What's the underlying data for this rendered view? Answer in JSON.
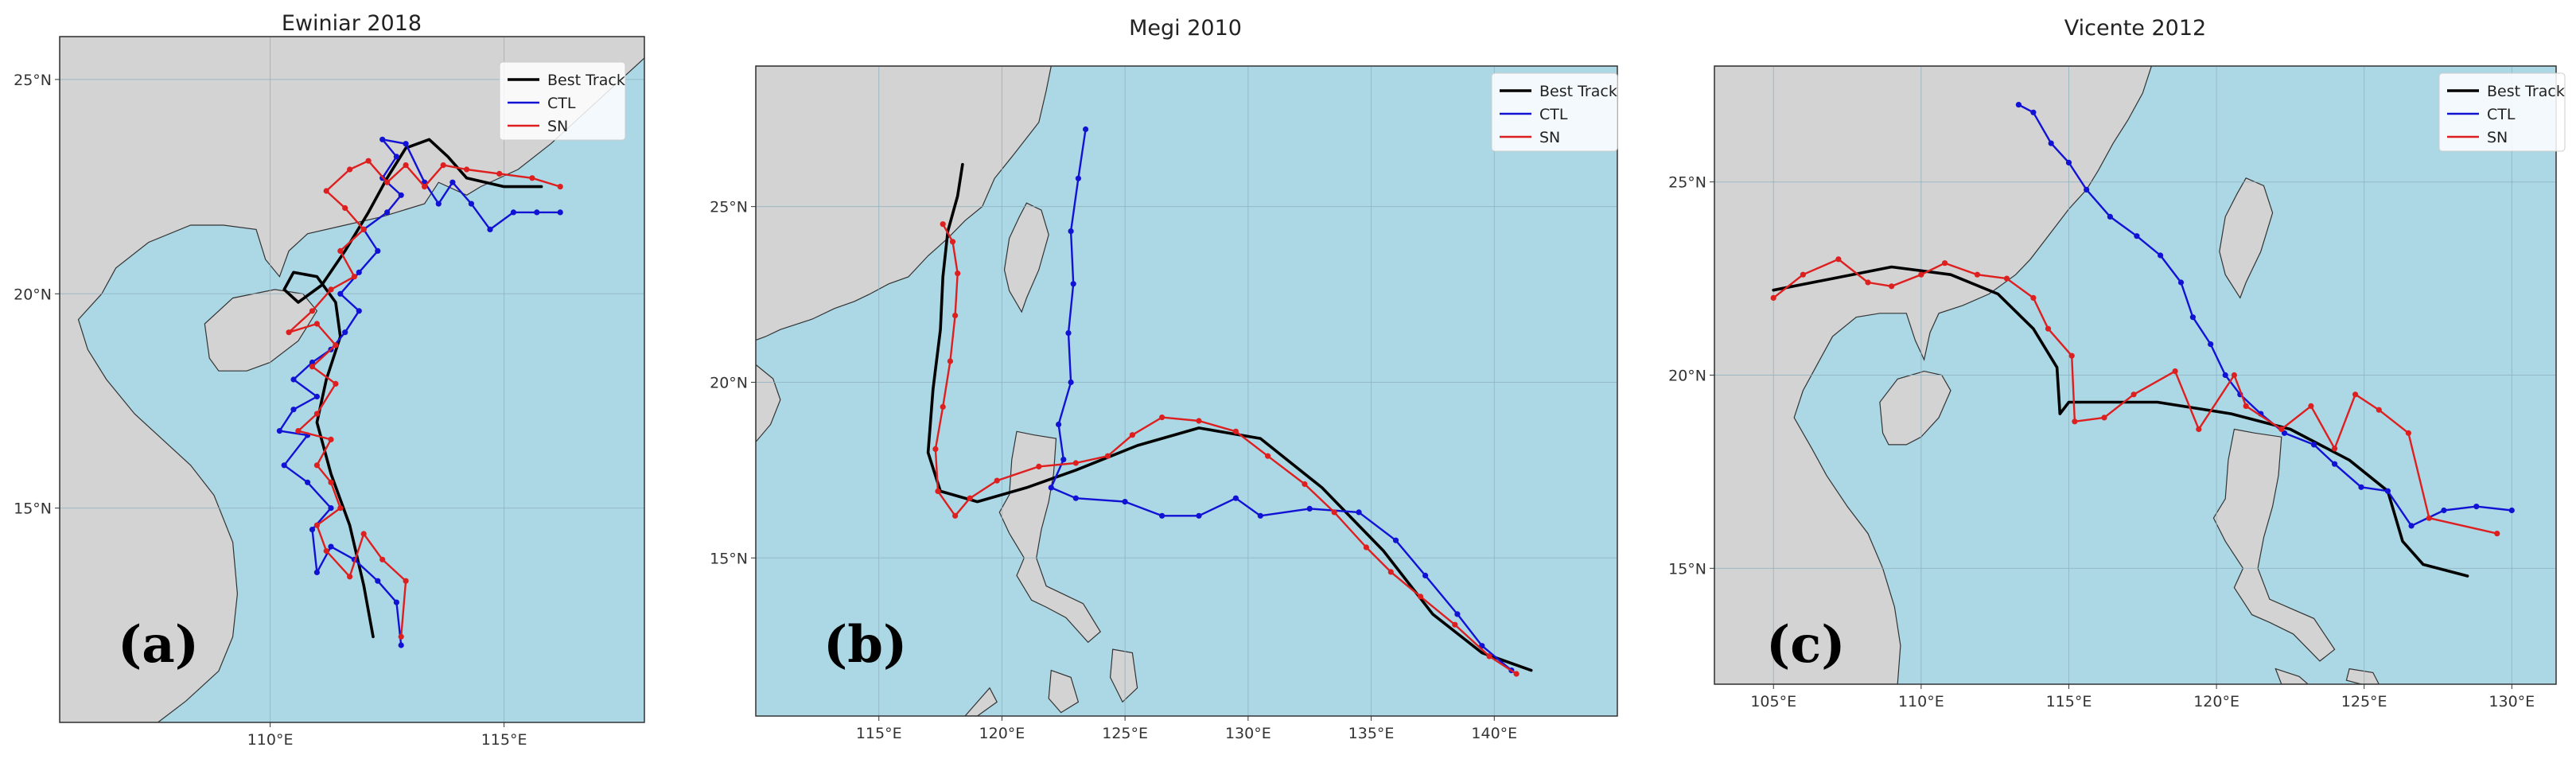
{
  "legend_labels": [
    "Best Track",
    "CTL",
    "SN"
  ],
  "colors": {
    "sea": "#acd8e6",
    "land": "#d3d3d3",
    "grid": "#8fb2c0",
    "best_track": "#000000",
    "ctl": "#1212d4",
    "sn": "#de1f1f"
  },
  "panels": [
    {
      "id": "a",
      "title": "Ewiniar 2018",
      "label": "(a)",
      "lon_range": [
        105.5,
        118.0
      ],
      "lat_range": [
        10.0,
        26.0
      ],
      "lon_ticks": [
        110,
        115
      ],
      "lon_tick_labels": [
        "110°E",
        "115°E"
      ],
      "lat_ticks": [
        15,
        20,
        25
      ],
      "lat_tick_labels": [
        "15°N",
        "20°N",
        "25°N"
      ],
      "tracks": {
        "best_track": [
          [
            112.2,
            12.0
          ],
          [
            112.0,
            13.2
          ],
          [
            111.7,
            14.6
          ],
          [
            111.3,
            15.8
          ],
          [
            111.0,
            17.0
          ],
          [
            111.2,
            18.0
          ],
          [
            111.5,
            19.0
          ],
          [
            111.4,
            19.8
          ],
          [
            111.0,
            20.4
          ],
          [
            110.5,
            20.5
          ],
          [
            110.3,
            20.1
          ],
          [
            110.6,
            19.8
          ],
          [
            111.1,
            20.2
          ],
          [
            111.6,
            21.0
          ],
          [
            112.1,
            21.9
          ],
          [
            112.5,
            22.7
          ],
          [
            112.9,
            23.4
          ],
          [
            113.4,
            23.6
          ],
          [
            113.8,
            23.2
          ],
          [
            114.2,
            22.7
          ],
          [
            115.0,
            22.5
          ],
          [
            115.8,
            22.5
          ]
        ],
        "ctl": [
          [
            112.8,
            11.8
          ],
          [
            112.7,
            12.8
          ],
          [
            112.3,
            13.3
          ],
          [
            111.8,
            13.8
          ],
          [
            111.3,
            14.1
          ],
          [
            111.0,
            13.5
          ],
          [
            110.9,
            14.5
          ],
          [
            111.3,
            15.0
          ],
          [
            110.8,
            15.6
          ],
          [
            110.3,
            16.0
          ],
          [
            110.8,
            16.7
          ],
          [
            110.2,
            16.8
          ],
          [
            110.5,
            17.3
          ],
          [
            111.0,
            17.6
          ],
          [
            110.5,
            18.0
          ],
          [
            110.9,
            18.4
          ],
          [
            111.3,
            18.7
          ],
          [
            111.6,
            19.1
          ],
          [
            111.9,
            19.6
          ],
          [
            111.5,
            20.0
          ],
          [
            111.9,
            20.5
          ],
          [
            112.3,
            21.0
          ],
          [
            112.0,
            21.5
          ],
          [
            112.5,
            21.9
          ],
          [
            112.8,
            22.3
          ],
          [
            112.4,
            22.7
          ],
          [
            112.7,
            23.2
          ],
          [
            112.4,
            23.6
          ],
          [
            112.9,
            23.5
          ],
          [
            113.3,
            22.6
          ],
          [
            113.6,
            22.1
          ],
          [
            113.9,
            22.6
          ],
          [
            114.3,
            22.1
          ],
          [
            114.7,
            21.5
          ],
          [
            115.2,
            21.9
          ],
          [
            115.7,
            21.9
          ],
          [
            116.2,
            21.9
          ]
        ],
        "sn": [
          [
            112.8,
            12.0
          ],
          [
            112.9,
            13.3
          ],
          [
            112.4,
            13.8
          ],
          [
            112.0,
            14.4
          ],
          [
            111.7,
            13.4
          ],
          [
            111.2,
            14.0
          ],
          [
            111.0,
            14.6
          ],
          [
            111.5,
            15.0
          ],
          [
            111.3,
            15.6
          ],
          [
            111.0,
            16.0
          ],
          [
            111.3,
            16.6
          ],
          [
            110.6,
            16.8
          ],
          [
            111.0,
            17.2
          ],
          [
            111.4,
            17.9
          ],
          [
            110.9,
            18.3
          ],
          [
            111.4,
            18.8
          ],
          [
            111.0,
            19.3
          ],
          [
            110.4,
            19.1
          ],
          [
            110.9,
            19.6
          ],
          [
            111.3,
            20.1
          ],
          [
            111.8,
            20.4
          ],
          [
            111.5,
            21.0
          ],
          [
            112.0,
            21.5
          ],
          [
            111.6,
            22.0
          ],
          [
            111.2,
            22.4
          ],
          [
            111.7,
            22.9
          ],
          [
            112.1,
            23.1
          ],
          [
            112.5,
            22.6
          ],
          [
            112.9,
            23.0
          ],
          [
            113.3,
            22.5
          ],
          [
            113.7,
            23.0
          ],
          [
            114.2,
            22.9
          ],
          [
            114.9,
            22.8
          ],
          [
            115.6,
            22.7
          ],
          [
            116.2,
            22.5
          ]
        ]
      }
    },
    {
      "id": "b",
      "title": "Megi 2010",
      "label": "(b)",
      "lon_range": [
        110.0,
        145.0
      ],
      "lat_range": [
        10.5,
        29.0
      ],
      "lon_ticks": [
        115,
        120,
        125,
        130,
        135,
        140
      ],
      "lon_tick_labels": [
        "115°E",
        "120°E",
        "125°E",
        "130°E",
        "135°E",
        "140°E"
      ],
      "lat_ticks": [
        15,
        20,
        25
      ],
      "lat_tick_labels": [
        "15°N",
        "20°N",
        "25°N"
      ],
      "tracks": {
        "best_track": [
          [
            141.5,
            11.8
          ],
          [
            139.5,
            12.3
          ],
          [
            137.5,
            13.4
          ],
          [
            135.5,
            15.2
          ],
          [
            133.0,
            17.0
          ],
          [
            130.5,
            18.4
          ],
          [
            128.0,
            18.7
          ],
          [
            125.5,
            18.2
          ],
          [
            123.0,
            17.5
          ],
          [
            121.0,
            17.0
          ],
          [
            119.0,
            16.6
          ],
          [
            117.5,
            16.9
          ],
          [
            117.0,
            18.0
          ],
          [
            117.2,
            19.8
          ],
          [
            117.5,
            21.5
          ],
          [
            117.6,
            23.0
          ],
          [
            117.8,
            24.3
          ],
          [
            118.2,
            25.3
          ],
          [
            118.4,
            26.2
          ]
        ],
        "ctl": [
          [
            140.7,
            11.8
          ],
          [
            139.5,
            12.5
          ],
          [
            138.5,
            13.4
          ],
          [
            137.2,
            14.5
          ],
          [
            136.0,
            15.5
          ],
          [
            134.5,
            16.3
          ],
          [
            132.5,
            16.4
          ],
          [
            130.5,
            16.2
          ],
          [
            129.5,
            16.7
          ],
          [
            128.0,
            16.2
          ],
          [
            126.5,
            16.2
          ],
          [
            125.0,
            16.6
          ],
          [
            123.0,
            16.7
          ],
          [
            122.0,
            17.0
          ],
          [
            122.5,
            17.8
          ],
          [
            122.3,
            18.8
          ],
          [
            122.8,
            20.0
          ],
          [
            122.7,
            21.4
          ],
          [
            122.9,
            22.8
          ],
          [
            122.8,
            24.3
          ],
          [
            123.1,
            25.8
          ],
          [
            123.4,
            27.2
          ]
        ],
        "sn": [
          [
            140.9,
            11.7
          ],
          [
            139.8,
            12.2
          ],
          [
            138.4,
            13.1
          ],
          [
            137.0,
            13.9
          ],
          [
            135.8,
            14.6
          ],
          [
            134.8,
            15.3
          ],
          [
            133.5,
            16.3
          ],
          [
            132.3,
            17.1
          ],
          [
            130.8,
            17.9
          ],
          [
            129.5,
            18.6
          ],
          [
            128.0,
            18.9
          ],
          [
            126.5,
            19.0
          ],
          [
            125.3,
            18.5
          ],
          [
            124.3,
            17.9
          ],
          [
            123.0,
            17.7
          ],
          [
            121.5,
            17.6
          ],
          [
            119.8,
            17.2
          ],
          [
            118.7,
            16.7
          ],
          [
            118.1,
            16.2
          ],
          [
            117.4,
            16.9
          ],
          [
            117.3,
            18.1
          ],
          [
            117.6,
            19.3
          ],
          [
            117.9,
            20.6
          ],
          [
            118.1,
            21.9
          ],
          [
            118.2,
            23.1
          ],
          [
            118.0,
            24.0
          ],
          [
            117.6,
            24.5
          ]
        ]
      }
    },
    {
      "id": "c",
      "title": "Vicente 2012",
      "label": "(c)",
      "lon_range": [
        103.0,
        131.5
      ],
      "lat_range": [
        12.0,
        28.0
      ],
      "lon_ticks": [
        105,
        110,
        115,
        120,
        125,
        130
      ],
      "lon_tick_labels": [
        "105°E",
        "110°E",
        "115°E",
        "120°E",
        "125°E",
        "130°E"
      ],
      "lat_ticks": [
        15,
        20,
        25
      ],
      "lat_tick_labels": [
        "15°N",
        "20°N",
        "25°N"
      ],
      "tracks": {
        "best_track": [
          [
            128.5,
            14.8
          ],
          [
            127.0,
            15.1
          ],
          [
            126.3,
            15.7
          ],
          [
            125.8,
            17.0
          ],
          [
            124.5,
            17.8
          ],
          [
            122.5,
            18.6
          ],
          [
            120.5,
            19.0
          ],
          [
            118.0,
            19.3
          ],
          [
            115.0,
            19.3
          ],
          [
            114.7,
            19.0
          ],
          [
            114.6,
            20.2
          ],
          [
            113.8,
            21.2
          ],
          [
            112.6,
            22.1
          ],
          [
            111.0,
            22.6
          ],
          [
            109.0,
            22.8
          ],
          [
            107.0,
            22.5
          ],
          [
            105.0,
            22.2
          ]
        ],
        "ctl": [
          [
            130.0,
            16.5
          ],
          [
            128.8,
            16.6
          ],
          [
            127.7,
            16.5
          ],
          [
            126.6,
            16.1
          ],
          [
            125.8,
            17.0
          ],
          [
            124.9,
            17.1
          ],
          [
            124.0,
            17.7
          ],
          [
            123.3,
            18.2
          ],
          [
            122.3,
            18.5
          ],
          [
            121.5,
            19.0
          ],
          [
            120.8,
            19.5
          ],
          [
            120.3,
            20.0
          ],
          [
            119.8,
            20.8
          ],
          [
            119.2,
            21.5
          ],
          [
            118.8,
            22.4
          ],
          [
            118.1,
            23.1
          ],
          [
            117.3,
            23.6
          ],
          [
            116.4,
            24.1
          ],
          [
            115.6,
            24.8
          ],
          [
            115.0,
            25.5
          ],
          [
            114.4,
            26.0
          ],
          [
            113.8,
            26.8
          ],
          [
            113.3,
            27.0
          ]
        ],
        "sn": [
          [
            129.5,
            15.9
          ],
          [
            127.2,
            16.3
          ],
          [
            126.5,
            18.5
          ],
          [
            125.5,
            19.1
          ],
          [
            124.7,
            19.5
          ],
          [
            124.0,
            18.1
          ],
          [
            123.2,
            19.2
          ],
          [
            122.2,
            18.6
          ],
          [
            121.0,
            19.2
          ],
          [
            120.6,
            20.0
          ],
          [
            119.4,
            18.6
          ],
          [
            118.6,
            20.1
          ],
          [
            117.2,
            19.5
          ],
          [
            116.2,
            18.9
          ],
          [
            115.2,
            18.8
          ],
          [
            115.1,
            20.5
          ],
          [
            114.3,
            21.2
          ],
          [
            113.8,
            22.0
          ],
          [
            112.9,
            22.5
          ],
          [
            111.9,
            22.6
          ],
          [
            110.8,
            22.9
          ],
          [
            110.0,
            22.6
          ],
          [
            109.0,
            22.3
          ],
          [
            108.2,
            22.4
          ],
          [
            107.2,
            23.0
          ],
          [
            106.0,
            22.6
          ],
          [
            105.0,
            22.0
          ]
        ]
      }
    }
  ]
}
